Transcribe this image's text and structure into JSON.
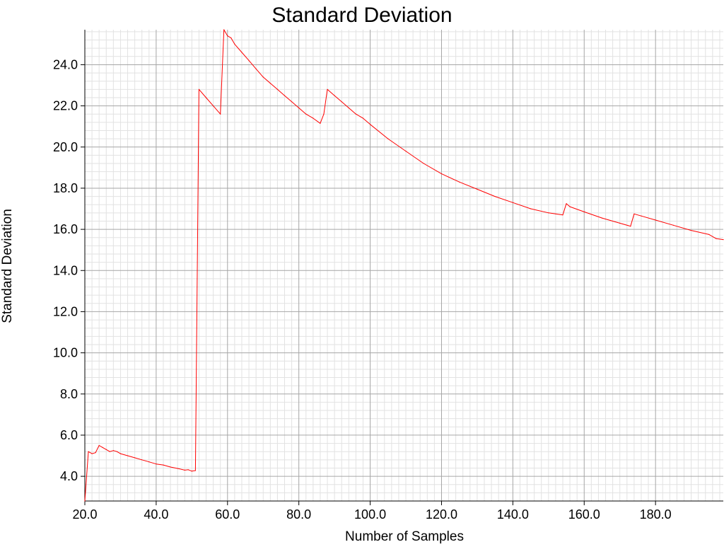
{
  "chart_data": {
    "type": "line",
    "title": "Standard Deviation",
    "xlabel": "Number of Samples",
    "ylabel": "Standard Deviation",
    "xlim": [
      20,
      199
    ],
    "ylim": [
      2.8,
      25.7
    ],
    "xticks": [
      20,
      40,
      60,
      80,
      100,
      120,
      140,
      160,
      180
    ],
    "xtick_labels": [
      "20.0",
      "40.0",
      "60.0",
      "80.0",
      "100.0",
      "120.0",
      "140.0",
      "160.0",
      "180.0"
    ],
    "yticks": [
      4,
      6,
      8,
      10,
      12,
      14,
      16,
      18,
      20,
      22,
      24
    ],
    "ytick_labels": [
      "4.0",
      "6.0",
      "8.0",
      "10.0",
      "12.0",
      "14.0",
      "16.0",
      "18.0",
      "20.0",
      "22.0",
      "24.0"
    ],
    "grid": true,
    "series": [
      {
        "name": "Standard Deviation",
        "color": "#ff0000",
        "x": [
          20,
          21,
          22,
          23,
          24,
          25,
          26,
          27,
          28,
          29,
          30,
          32,
          34,
          36,
          38,
          40,
          42,
          44,
          46,
          48,
          49,
          50,
          51,
          52,
          54,
          56,
          58,
          59,
          60,
          61,
          62,
          64,
          66,
          68,
          70,
          72,
          74,
          76,
          78,
          80,
          82,
          84,
          86,
          87,
          88,
          90,
          92,
          94,
          96,
          98,
          100,
          105,
          110,
          115,
          120,
          125,
          130,
          135,
          140,
          145,
          150,
          152,
          154,
          155,
          156,
          160,
          165,
          170,
          173,
          174,
          176,
          180,
          185,
          190,
          195,
          197,
          199
        ],
        "y": [
          2.8,
          5.2,
          5.1,
          5.15,
          5.5,
          5.4,
          5.3,
          5.2,
          5.25,
          5.2,
          5.1,
          5.0,
          4.9,
          4.8,
          4.7,
          4.6,
          4.55,
          4.45,
          4.38,
          4.3,
          4.32,
          4.25,
          4.28,
          22.8,
          22.4,
          22.0,
          21.6,
          25.7,
          25.4,
          25.3,
          25.0,
          24.6,
          24.2,
          23.8,
          23.4,
          23.1,
          22.8,
          22.5,
          22.2,
          21.9,
          21.6,
          21.4,
          21.15,
          21.6,
          22.8,
          22.5,
          22.2,
          21.9,
          21.6,
          21.4,
          21.1,
          20.4,
          19.8,
          19.2,
          18.7,
          18.3,
          17.95,
          17.6,
          17.3,
          17.0,
          16.8,
          16.75,
          16.7,
          17.25,
          17.1,
          16.85,
          16.55,
          16.3,
          16.15,
          16.75,
          16.65,
          16.45,
          16.2,
          15.95,
          15.75,
          15.55,
          15.5
        ]
      }
    ]
  }
}
